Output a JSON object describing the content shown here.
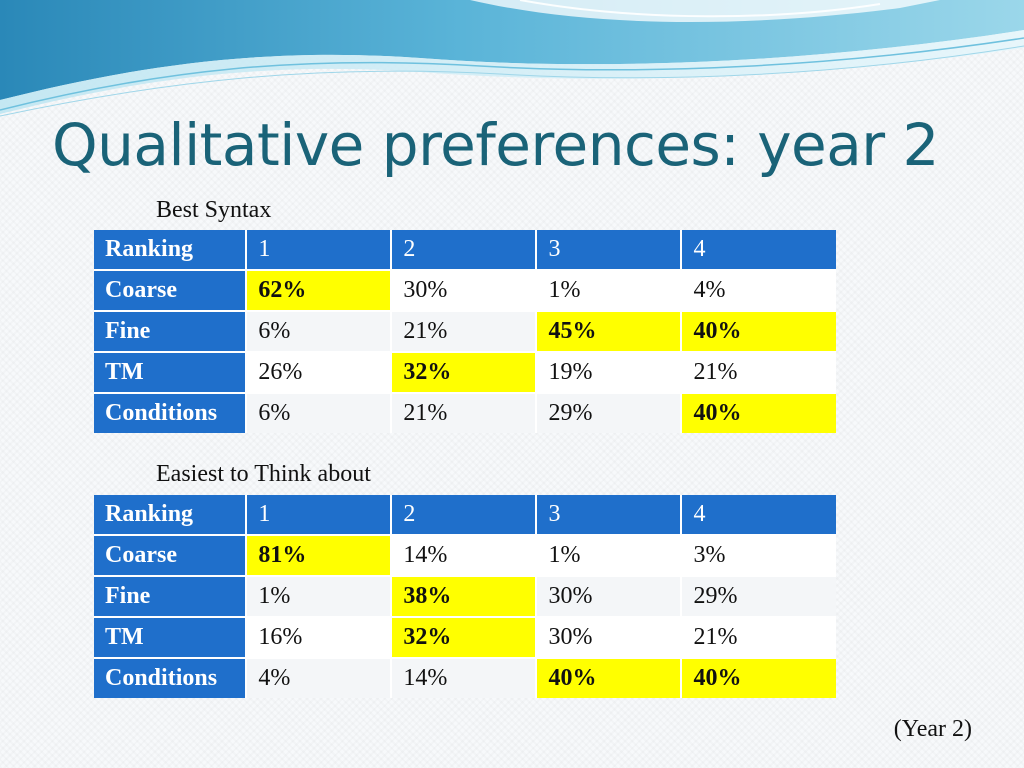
{
  "slide": {
    "title": "Qualitative preferences: year 2",
    "footer": "(Year 2)",
    "highlight_color": "#ffff00",
    "header_color": "#1f6fcb",
    "title_color": "#1a6378"
  },
  "tables": [
    {
      "caption": "Best Syntax",
      "header": {
        "label": "Ranking",
        "cols": [
          "1",
          "2",
          "3",
          "4"
        ]
      },
      "rows": [
        {
          "label": "Coarse",
          "cells": [
            {
              "v": "62%",
              "hl": true
            },
            {
              "v": "30%"
            },
            {
              "v": "1%"
            },
            {
              "v": "4%"
            }
          ]
        },
        {
          "label": "Fine",
          "cells": [
            {
              "v": "6%"
            },
            {
              "v": "21%"
            },
            {
              "v": "45%",
              "hl": true
            },
            {
              "v": "40%",
              "hl": true
            }
          ]
        },
        {
          "label": "TM",
          "cells": [
            {
              "v": "26%"
            },
            {
              "v": "32%",
              "hl": true
            },
            {
              "v": "19%"
            },
            {
              "v": "21%"
            }
          ]
        },
        {
          "label": "Conditions",
          "cells": [
            {
              "v": "6%"
            },
            {
              "v": "21%"
            },
            {
              "v": "29%"
            },
            {
              "v": "40%",
              "hl": true
            }
          ]
        }
      ]
    },
    {
      "caption": "Easiest to Think about",
      "header": {
        "label": "Ranking",
        "cols": [
          "1",
          "2",
          "3",
          "4"
        ]
      },
      "rows": [
        {
          "label": "Coarse",
          "cells": [
            {
              "v": "81%",
              "hl": true
            },
            {
              "v": "14%"
            },
            {
              "v": "1%"
            },
            {
              "v": "3%"
            }
          ]
        },
        {
          "label": "Fine",
          "cells": [
            {
              "v": "1%"
            },
            {
              "v": "38%",
              "hl": true
            },
            {
              "v": "30%"
            },
            {
              "v": "29%"
            }
          ]
        },
        {
          "label": "TM",
          "cells": [
            {
              "v": "16%"
            },
            {
              "v": "32%",
              "hl": true
            },
            {
              "v": "30%"
            },
            {
              "v": "21%"
            }
          ]
        },
        {
          "label": "Conditions",
          "cells": [
            {
              "v": "4%"
            },
            {
              "v": "14%"
            },
            {
              "v": "40%",
              "hl": true
            },
            {
              "v": "40%",
              "hl": true
            }
          ]
        }
      ]
    }
  ]
}
